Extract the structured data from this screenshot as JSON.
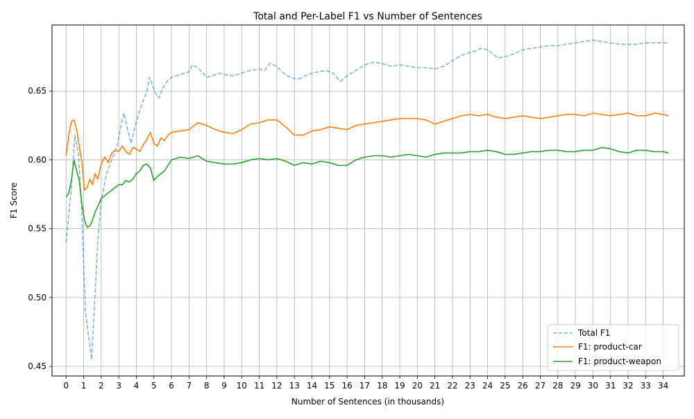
{
  "chart_data": {
    "type": "line",
    "title": "Total and Per-Label F1 vs Number of Sentences",
    "xlabel": "Number of Sentences (in thousands)",
    "ylabel": "F1 Score",
    "xlim": [
      -0.8,
      35.2
    ],
    "ylim": [
      0.443,
      0.698
    ],
    "x_ticks": [
      0,
      1,
      2,
      3,
      4,
      5,
      6,
      7,
      8,
      9,
      10,
      11,
      12,
      13,
      14,
      15,
      16,
      17,
      18,
      19,
      20,
      21,
      22,
      23,
      24,
      25,
      26,
      27,
      28,
      29,
      30,
      31,
      32,
      33,
      34
    ],
    "y_ticks": [
      0.45,
      0.5,
      0.55,
      0.6,
      0.65
    ],
    "y_tick_labels": [
      "0.45",
      "0.50",
      "0.55",
      "0.60",
      "0.65"
    ],
    "grid": true,
    "legend_position": "lower-right",
    "series": [
      {
        "name": "Total F1",
        "color": "#1f77b4",
        "style": "dashed",
        "alpha": 0.55,
        "x": [
          0,
          0.3,
          0.5,
          0.7,
          0.9,
          1.1,
          1.3,
          1.45,
          1.6,
          1.8,
          2.0,
          2.3,
          2.6,
          2.9,
          3.2,
          3.3,
          3.5,
          3.7,
          4.0,
          4.3,
          4.6,
          4.75,
          4.9,
          5.1,
          5.3,
          5.5,
          5.8,
          6.0,
          6.5,
          7.0,
          7.2,
          7.5,
          7.8,
          8.0,
          8.3,
          8.7,
          9.0,
          9.5,
          10.0,
          10.5,
          11.0,
          11.3,
          11.6,
          12.0,
          12.3,
          12.6,
          13.0,
          13.3,
          13.6,
          14.0,
          14.4,
          14.8,
          15.2,
          15.6,
          16.0,
          16.5,
          17.0,
          17.5,
          18.0,
          18.5,
          19.0,
          19.5,
          20.0,
          20.5,
          21.0,
          21.5,
          22.0,
          22.5,
          23.0,
          23.3,
          23.6,
          24.0,
          24.3,
          24.6,
          25.0,
          25.5,
          26.0,
          26.5,
          27.0,
          27.5,
          28.0,
          28.5,
          29.0,
          29.5,
          30.0,
          30.5,
          31.0,
          31.5,
          32.0,
          32.5,
          33.0,
          33.5,
          34.0,
          34.3
        ],
        "y": [
          0.54,
          0.58,
          0.618,
          0.605,
          0.56,
          0.49,
          0.47,
          0.455,
          0.49,
          0.54,
          0.57,
          0.59,
          0.6,
          0.61,
          0.63,
          0.634,
          0.622,
          0.612,
          0.628,
          0.64,
          0.65,
          0.66,
          0.655,
          0.648,
          0.645,
          0.652,
          0.658,
          0.66,
          0.662,
          0.664,
          0.669,
          0.667,
          0.663,
          0.66,
          0.661,
          0.663,
          0.662,
          0.661,
          0.663,
          0.665,
          0.666,
          0.665,
          0.67,
          0.668,
          0.664,
          0.661,
          0.659,
          0.659,
          0.661,
          0.663,
          0.664,
          0.665,
          0.663,
          0.657,
          0.661,
          0.665,
          0.669,
          0.671,
          0.67,
          0.668,
          0.669,
          0.668,
          0.667,
          0.667,
          0.666,
          0.668,
          0.672,
          0.676,
          0.678,
          0.679,
          0.681,
          0.68,
          0.677,
          0.674,
          0.675,
          0.677,
          0.68,
          0.681,
          0.682,
          0.683,
          0.683,
          0.684,
          0.685,
          0.686,
          0.687,
          0.686,
          0.685,
          0.684,
          0.684,
          0.684,
          0.685,
          0.685,
          0.685,
          0.685
        ]
      },
      {
        "name": "F1: product-car",
        "color": "#ff7f0e",
        "style": "solid",
        "alpha": 1,
        "x": [
          0,
          0.15,
          0.3,
          0.45,
          0.6,
          0.75,
          0.9,
          1.05,
          1.2,
          1.35,
          1.5,
          1.65,
          1.8,
          2.0,
          2.2,
          2.4,
          2.6,
          2.8,
          3.0,
          3.2,
          3.4,
          3.6,
          3.8,
          4.0,
          4.2,
          4.4,
          4.6,
          4.8,
          5.0,
          5.2,
          5.4,
          5.6,
          5.8,
          6.0,
          6.5,
          7.0,
          7.5,
          8.0,
          8.5,
          9.0,
          9.5,
          10.0,
          10.5,
          11.0,
          11.5,
          12.0,
          12.5,
          13.0,
          13.5,
          14.0,
          14.5,
          15.0,
          15.5,
          16.0,
          16.5,
          17.0,
          17.5,
          18.0,
          18.5,
          19.0,
          19.5,
          20.0,
          20.5,
          21.0,
          21.5,
          22.0,
          22.5,
          23.0,
          23.5,
          24.0,
          24.5,
          25.0,
          25.5,
          26.0,
          26.5,
          27.0,
          27.5,
          28.0,
          28.5,
          29.0,
          29.5,
          30.0,
          30.5,
          31.0,
          31.5,
          32.0,
          32.5,
          33.0,
          33.5,
          34.0,
          34.3
        ],
        "y": [
          0.603,
          0.618,
          0.628,
          0.629,
          0.622,
          0.61,
          0.598,
          0.578,
          0.58,
          0.586,
          0.582,
          0.59,
          0.586,
          0.597,
          0.602,
          0.598,
          0.605,
          0.607,
          0.606,
          0.61,
          0.606,
          0.604,
          0.609,
          0.608,
          0.606,
          0.611,
          0.615,
          0.62,
          0.612,
          0.61,
          0.616,
          0.614,
          0.618,
          0.62,
          0.621,
          0.622,
          0.627,
          0.625,
          0.622,
          0.62,
          0.619,
          0.622,
          0.626,
          0.627,
          0.629,
          0.629,
          0.624,
          0.618,
          0.618,
          0.621,
          0.622,
          0.624,
          0.623,
          0.622,
          0.625,
          0.626,
          0.627,
          0.628,
          0.629,
          0.63,
          0.63,
          0.63,
          0.629,
          0.626,
          0.628,
          0.63,
          0.632,
          0.633,
          0.632,
          0.633,
          0.631,
          0.63,
          0.631,
          0.632,
          0.631,
          0.63,
          0.631,
          0.632,
          0.633,
          0.633,
          0.632,
          0.634,
          0.633,
          0.632,
          0.633,
          0.634,
          0.632,
          0.632,
          0.634,
          0.633,
          0.632
        ]
      },
      {
        "name": "F1: product-weapon",
        "color": "#2ca02c",
        "style": "solid",
        "alpha": 1,
        "x": [
          0,
          0.15,
          0.3,
          0.45,
          0.6,
          0.75,
          0.9,
          1.05,
          1.2,
          1.35,
          1.5,
          1.65,
          1.8,
          2.0,
          2.2,
          2.4,
          2.6,
          2.8,
          3.0,
          3.2,
          3.4,
          3.6,
          3.8,
          4.0,
          4.2,
          4.4,
          4.6,
          4.8,
          5.0,
          5.2,
          5.4,
          5.6,
          5.8,
          6.0,
          6.5,
          7.0,
          7.5,
          8.0,
          8.5,
          9.0,
          9.5,
          10.0,
          10.5,
          11.0,
          11.5,
          12.0,
          12.5,
          13.0,
          13.5,
          14.0,
          14.5,
          15.0,
          15.5,
          16.0,
          16.5,
          17.0,
          17.5,
          18.0,
          18.5,
          19.0,
          19.5,
          20.0,
          20.5,
          21.0,
          21.5,
          22.0,
          22.5,
          23.0,
          23.5,
          24.0,
          24.5,
          25.0,
          25.5,
          26.0,
          26.5,
          27.0,
          27.5,
          28.0,
          28.5,
          29.0,
          29.5,
          30.0,
          30.5,
          31.0,
          31.5,
          32.0,
          32.5,
          33.0,
          33.5,
          34.0,
          34.3
        ],
        "y": [
          0.573,
          0.576,
          0.585,
          0.6,
          0.592,
          0.585,
          0.568,
          0.556,
          0.551,
          0.552,
          0.556,
          0.562,
          0.566,
          0.572,
          0.574,
          0.576,
          0.578,
          0.58,
          0.582,
          0.582,
          0.585,
          0.584,
          0.586,
          0.59,
          0.592,
          0.596,
          0.597,
          0.594,
          0.585,
          0.588,
          0.59,
          0.592,
          0.596,
          0.6,
          0.602,
          0.601,
          0.603,
          0.599,
          0.598,
          0.597,
          0.597,
          0.598,
          0.6,
          0.601,
          0.6,
          0.601,
          0.599,
          0.596,
          0.598,
          0.597,
          0.599,
          0.598,
          0.596,
          0.596,
          0.6,
          0.602,
          0.603,
          0.603,
          0.602,
          0.603,
          0.604,
          0.603,
          0.602,
          0.604,
          0.605,
          0.605,
          0.605,
          0.606,
          0.606,
          0.607,
          0.606,
          0.604,
          0.604,
          0.605,
          0.606,
          0.606,
          0.607,
          0.607,
          0.606,
          0.606,
          0.607,
          0.607,
          0.609,
          0.608,
          0.606,
          0.605,
          0.607,
          0.607,
          0.606,
          0.606,
          0.605
        ]
      }
    ]
  }
}
